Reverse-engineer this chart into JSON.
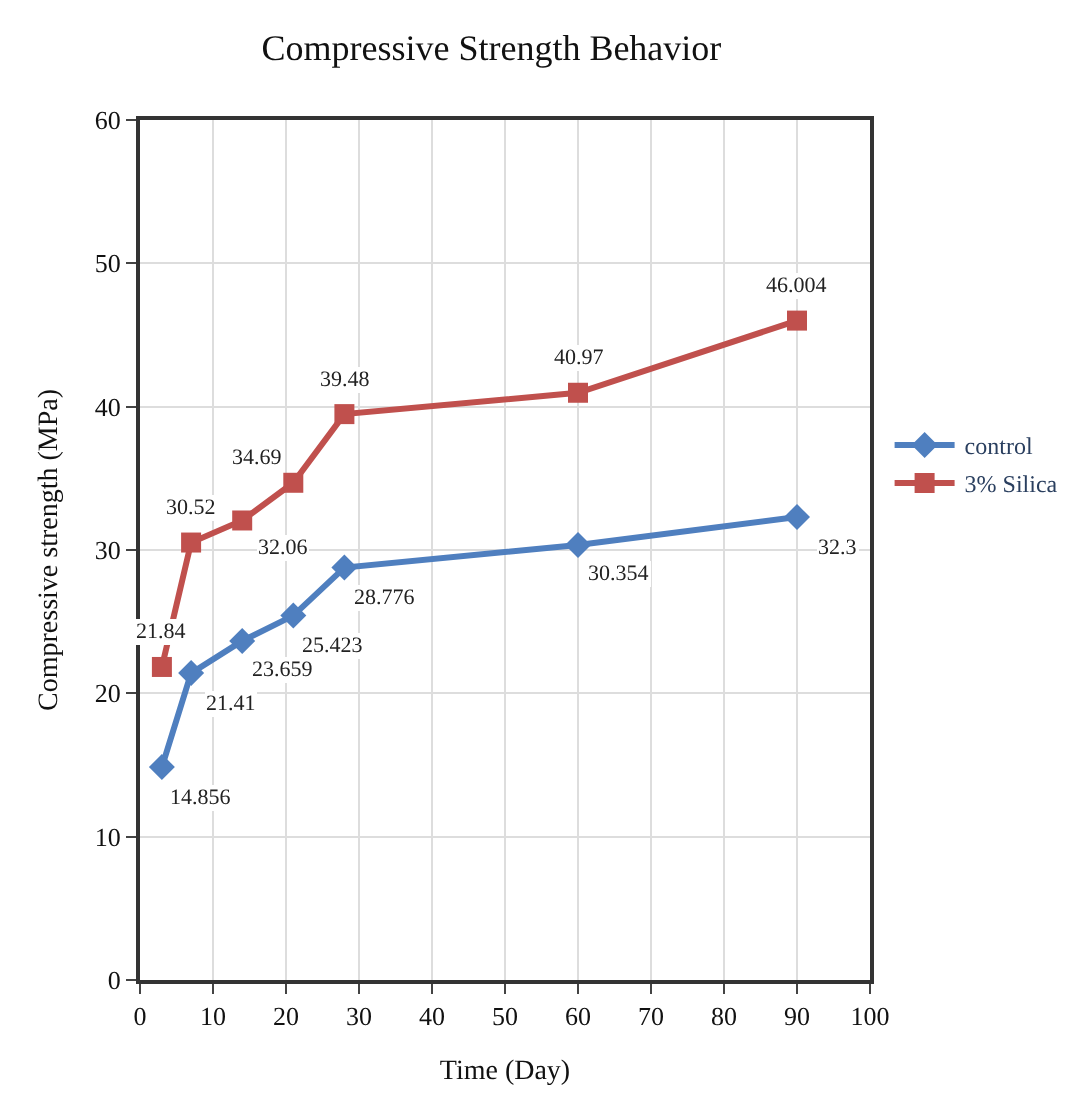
{
  "chart_data": {
    "type": "line",
    "title": "Compressive Strength Behavior",
    "xlabel": "Time (Day)",
    "ylabel": "Compressive strength (MPa)",
    "x": [
      3,
      7,
      14,
      21,
      28,
      60,
      90
    ],
    "series": [
      {
        "name": "control",
        "color": "#4f7fbf",
        "marker": "diamond",
        "values": [
          14.856,
          21.41,
          23.659,
          25.423,
          28.776,
          30.354,
          32.3
        ]
      },
      {
        "name": "3% Silica",
        "color": "#c0504d",
        "marker": "square",
        "values": [
          21.84,
          30.52,
          32.06,
          34.69,
          39.48,
          40.97,
          46.004
        ]
      }
    ],
    "xlim": [
      0,
      100
    ],
    "xticks": [
      0,
      10,
      20,
      30,
      40,
      50,
      60,
      70,
      80,
      90,
      100
    ],
    "ylim": [
      0,
      60
    ],
    "yticks": [
      0,
      10,
      20,
      30,
      40,
      50,
      60
    ],
    "grid": true,
    "legend": "right",
    "data_labels": true,
    "line_style": "solid"
  }
}
